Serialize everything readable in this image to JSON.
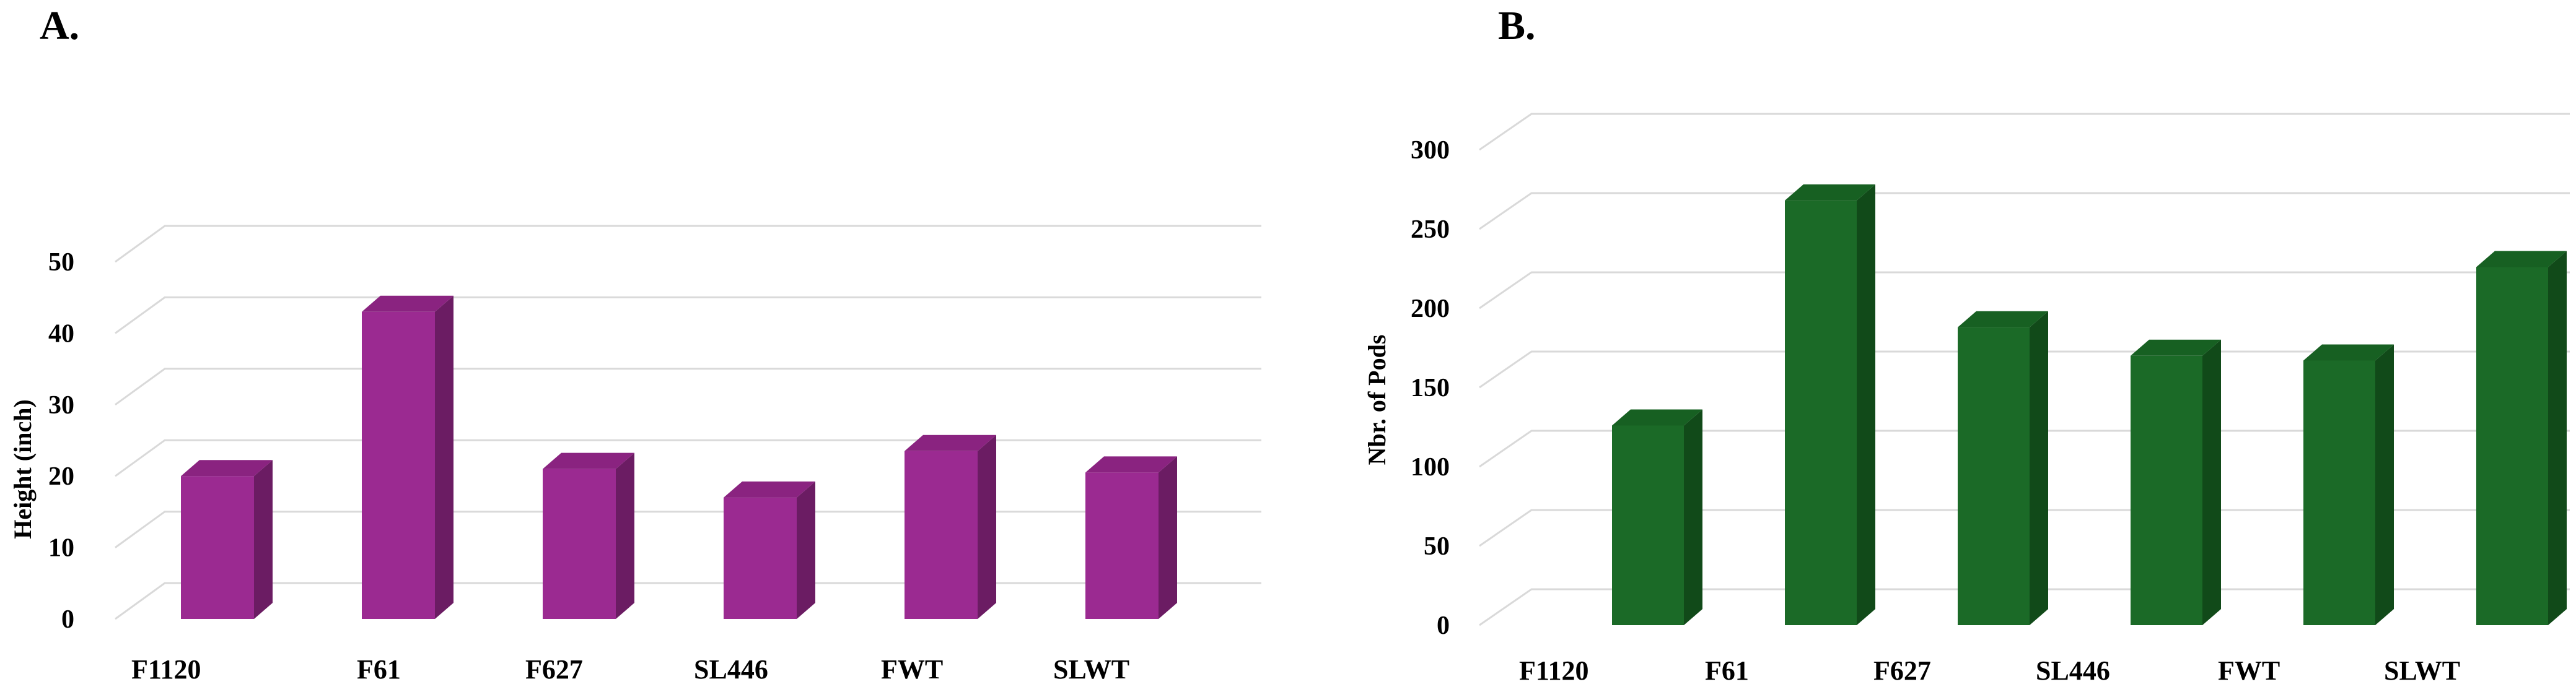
{
  "panels": {
    "a_label": "A.",
    "b_label": "B."
  },
  "chart_data": [
    {
      "type": "bar",
      "title": "",
      "xlabel": "",
      "ylabel": "Height (inch)",
      "categories": [
        "F1120",
        "F61",
        "F627",
        "SL446",
        "FWT",
        "SLWT"
      ],
      "values": [
        20,
        43,
        21,
        17,
        23.5,
        20.5
      ],
      "ylim": [
        0,
        50
      ],
      "yticks": [
        0,
        10,
        20,
        30,
        40,
        50
      ],
      "grid": true,
      "colors": {
        "front": "#9b2a91",
        "top": "#8a2380",
        "side": "#6b1c63"
      }
    },
    {
      "type": "bar",
      "title": "",
      "xlabel": "",
      "ylabel": "Nbr. of Pods",
      "categories": [
        "F1120",
        "F61",
        "F627",
        "SL446",
        "FWT",
        "SLWT"
      ],
      "values": [
        126,
        268,
        188,
        170,
        167,
        226
      ],
      "ylim": [
        0,
        300
      ],
      "yticks": [
        0,
        50,
        100,
        150,
        200,
        250,
        300
      ],
      "grid": true,
      "colors": {
        "front": "#1b6a27",
        "top": "#176022",
        "side": "#114a19"
      }
    }
  ]
}
